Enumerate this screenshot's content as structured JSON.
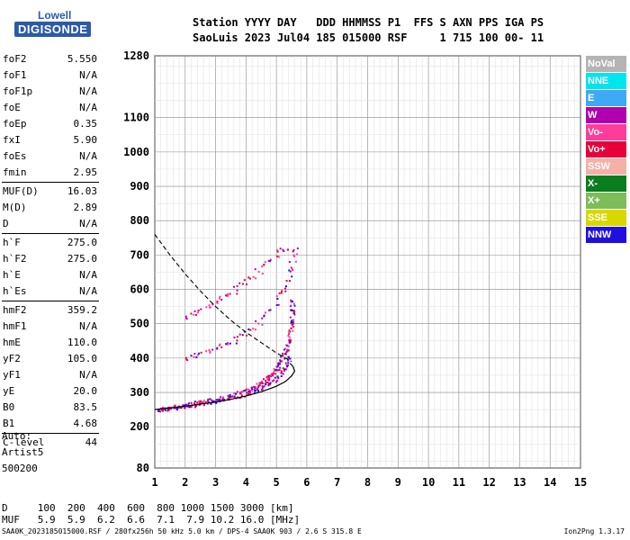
{
  "logo": {
    "line1": "Lowell",
    "line2": "DIGISONDE"
  },
  "header": {
    "row1": "Station YYYY DAY   DDD HHMMSS P1  FFS S AXN PPS IGA PS",
    "row2": "SaoLuis 2023 Jul04 185 015000 RSF     1 715 100 00- 11"
  },
  "params": [
    {
      "name": "foF2",
      "value": "5.550"
    },
    {
      "name": "foF1",
      "value": "N/A"
    },
    {
      "name": "foF1p",
      "value": "N/A"
    },
    {
      "name": "foE",
      "value": "N/A"
    },
    {
      "name": "foEp",
      "value": "0.35"
    },
    {
      "name": "fxI",
      "value": "5.90"
    },
    {
      "name": "foEs",
      "value": "N/A"
    },
    {
      "name": "fmin",
      "value": "2.95"
    },
    {
      "name": "MUF(D)",
      "value": "16.03"
    },
    {
      "name": "M(D)",
      "value": "2.89"
    },
    {
      "name": "D",
      "value": "N/A"
    },
    {
      "name": "h`F",
      "value": "275.0"
    },
    {
      "name": "h`F2",
      "value": "275.0"
    },
    {
      "name": "h`E",
      "value": "N/A"
    },
    {
      "name": "h`Es",
      "value": "N/A"
    },
    {
      "name": "hmF2",
      "value": "359.2"
    },
    {
      "name": "hmF1",
      "value": "N/A"
    },
    {
      "name": "hmE",
      "value": "110.0"
    },
    {
      "name": "yF2",
      "value": "105.0"
    },
    {
      "name": "yF1",
      "value": "N/A"
    },
    {
      "name": "yE",
      "value": "20.0"
    },
    {
      "name": "B0",
      "value": "83.5"
    },
    {
      "name": "B1",
      "value": "4.68"
    },
    {
      "name": "C-level",
      "value": "44"
    }
  ],
  "misc": {
    "auto": "Auto:",
    "artist": "Artist5",
    "code": "500200"
  },
  "muf_table": {
    "row1": "D     100  200  400  600  800 1000 1500 3000 [km]",
    "row2": "MUF   5.9  5.9  6.2  6.6  7.1  7.9 10.2 16.0 [MHz]"
  },
  "footer": {
    "left": "SAA0K_2023185015000.RSF / 280fx256h 50 kHz 5.0 km / DPS-4 SAA0K 903 / 2.6 S 315.8 E",
    "right": "Ion2Png 1.3.17"
  },
  "legend": [
    {
      "label": "NoVal",
      "color": "#b4b4b4"
    },
    {
      "label": "NNE",
      "color": "#00e5ee"
    },
    {
      "label": "E",
      "color": "#3ea9f5"
    },
    {
      "label": "W",
      "color": "#b000b0"
    },
    {
      "label": "Vo-",
      "color": "#ff3c9a"
    },
    {
      "label": "Vo+",
      "color": "#e8003a"
    },
    {
      "label": "SSW",
      "color": "#f5b0a8"
    },
    {
      "label": "X-",
      "color": "#0a7d1e"
    },
    {
      "label": "X+",
      "color": "#7ebc5a"
    },
    {
      "label": "SSE",
      "color": "#d8d800"
    },
    {
      "label": "NNW",
      "color": "#2010e0"
    }
  ],
  "chart_data": {
    "type": "scatter",
    "xlabel": "",
    "ylabel": "",
    "xlim": [
      1,
      15
    ],
    "ylim": [
      80,
      1280
    ],
    "x_ticks": [
      "1",
      "2",
      "3",
      "4",
      "5",
      "6",
      "7",
      "8",
      "9",
      "10",
      "11",
      "12",
      "13",
      "14",
      "15"
    ],
    "y_ticks": [
      "80",
      "200",
      "300",
      "400",
      "500",
      "600",
      "700",
      "800",
      "900",
      "1000",
      "1100",
      "1280"
    ],
    "y_tick_values": [
      80,
      200,
      300,
      400,
      500,
      600,
      700,
      800,
      900,
      1000,
      1100,
      1280
    ],
    "trace_O_vo_plus": [
      [
        1.1,
        252
      ],
      [
        1.5,
        257
      ],
      [
        2.0,
        264
      ],
      [
        2.5,
        272
      ],
      [
        3.0,
        280
      ],
      [
        3.5,
        292
      ],
      [
        4.0,
        306
      ],
      [
        4.3,
        318
      ],
      [
        4.6,
        335
      ],
      [
        4.8,
        350
      ],
      [
        5.0,
        372
      ],
      [
        5.2,
        405
      ],
      [
        5.35,
        440
      ],
      [
        5.45,
        480
      ],
      [
        5.5,
        530
      ],
      [
        5.52,
        570
      ]
    ],
    "trace_X": [
      [
        1.1,
        250
      ],
      [
        1.6,
        255
      ],
      [
        2.0,
        260
      ],
      [
        2.5,
        268
      ],
      [
        3.0,
        276
      ],
      [
        3.5,
        285
      ],
      [
        4.0,
        297
      ],
      [
        4.4,
        310
      ],
      [
        4.8,
        328
      ],
      [
        5.1,
        352
      ],
      [
        5.3,
        380
      ],
      [
        5.45,
        410
      ]
    ],
    "trace_second_hop": [
      [
        2.0,
        400
      ],
      [
        2.5,
        415
      ],
      [
        3.0,
        430
      ],
      [
        3.5,
        450
      ],
      [
        4.0,
        475
      ],
      [
        4.5,
        510
      ],
      [
        5.0,
        560
      ],
      [
        5.3,
        620
      ],
      [
        5.5,
        680
      ],
      [
        5.6,
        730
      ]
    ],
    "trace_upper": [
      [
        2.0,
        520
      ],
      [
        2.5,
        540
      ],
      [
        3.0,
        565
      ],
      [
        3.5,
        595
      ],
      [
        4.0,
        625
      ],
      [
        4.5,
        660
      ],
      [
        5.0,
        700
      ],
      [
        5.4,
        730
      ]
    ],
    "profile_curve": [
      [
        1.0,
        250
      ],
      [
        1.5,
        255
      ],
      [
        2.0,
        260
      ],
      [
        2.5,
        266
      ],
      [
        3.0,
        272
      ],
      [
        3.5,
        280
      ],
      [
        4.0,
        290
      ],
      [
        4.5,
        302
      ],
      [
        5.0,
        318
      ],
      [
        5.3,
        332
      ],
      [
        5.5,
        348
      ],
      [
        5.6,
        362
      ],
      [
        5.55,
        375
      ],
      [
        5.45,
        385
      ]
    ],
    "dashed_curve": [
      [
        1.0,
        760
      ],
      [
        1.5,
        700
      ],
      [
        2.0,
        645
      ],
      [
        2.5,
        595
      ],
      [
        3.0,
        550
      ],
      [
        3.5,
        510
      ],
      [
        4.0,
        475
      ],
      [
        4.5,
        445
      ],
      [
        5.0,
        415
      ],
      [
        5.3,
        400
      ],
      [
        5.5,
        390
      ]
    ]
  }
}
